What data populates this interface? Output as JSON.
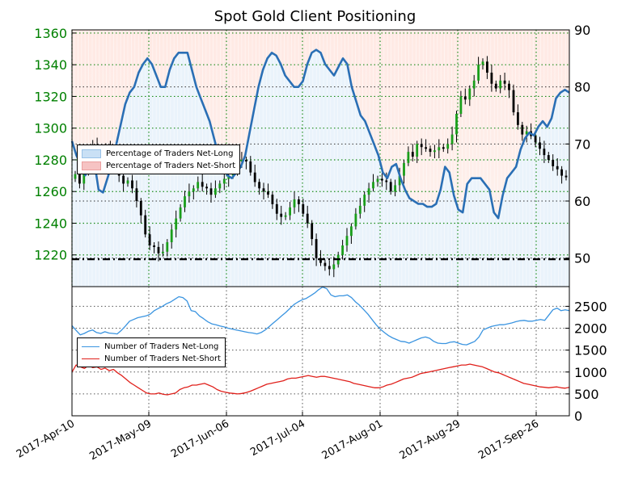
{
  "chart_data": [
    {
      "type": "candlestick+line",
      "title": "Spot Gold Client Positioning",
      "left_axis": {
        "ticks": [
          1220,
          1240,
          1260,
          1280,
          1300,
          1320,
          1340,
          1360
        ],
        "ylim": [
          1200,
          1362
        ],
        "color": "#008000"
      },
      "right_axis": {
        "ticks": [
          50,
          60,
          70,
          80,
          90
        ],
        "ylim": [
          45,
          90
        ]
      },
      "x_ticks": [
        "2017-Apr-10",
        "2017-May-09",
        "2017-Jun-06",
        "2017-Jul-04",
        "2017-Aug-01",
        "2017-Aug-29",
        "2017-Sep-26"
      ],
      "legend": [
        "Percentage of Traders Net-Long",
        "Percentage of Traders Net-Short"
      ],
      "legend_position": "left",
      "reference_line": {
        "value": 49.8,
        "style": "dash-dot"
      },
      "grid": true,
      "price_close": [
        1271,
        1265,
        1275,
        1283,
        1289,
        1286,
        1280,
        1287,
        1284,
        1278,
        1270,
        1265,
        1267,
        1262,
        1254,
        1245,
        1233,
        1226,
        1225,
        1221,
        1222,
        1228,
        1236,
        1243,
        1250,
        1257,
        1260,
        1262,
        1266,
        1263,
        1262,
        1258,
        1262,
        1265,
        1268,
        1270,
        1273,
        1279,
        1280,
        1279,
        1272,
        1266,
        1262,
        1260,
        1258,
        1252,
        1246,
        1244,
        1245,
        1250,
        1255,
        1252,
        1246,
        1240,
        1230,
        1218,
        1215,
        1213,
        1211,
        1214,
        1220,
        1226,
        1232,
        1238,
        1246,
        1251,
        1258,
        1262,
        1266,
        1268,
        1267,
        1266,
        1260,
        1264,
        1270,
        1278,
        1285,
        1282,
        1290,
        1288,
        1287,
        1285,
        1286,
        1288,
        1287,
        1290,
        1296,
        1309,
        1320,
        1318,
        1325,
        1330,
        1340,
        1342,
        1335,
        1328,
        1325,
        1330,
        1328,
        1324,
        1310,
        1302,
        1296,
        1298,
        1295,
        1291,
        1287,
        1283,
        1280,
        1276,
        1274,
        1270,
        1269
      ],
      "series": [
        {
          "name": "Percentage of Traders Net-Long",
          "values": [
            70.5,
            68,
            66.5,
            64.5,
            66,
            67,
            62,
            61.5,
            64,
            66.5,
            70,
            73.5,
            77,
            79,
            80,
            82.5,
            84,
            85,
            84,
            82,
            80,
            80,
            83,
            85,
            86,
            86,
            86,
            83,
            80,
            78,
            76,
            74,
            71,
            68,
            66,
            64.5,
            64,
            65,
            66,
            68,
            72,
            76,
            80,
            83,
            85,
            86,
            85.5,
            84,
            82,
            81,
            80,
            80,
            81,
            84,
            86,
            86.5,
            86,
            84,
            83,
            82,
            83.5,
            85,
            84,
            80,
            77.5,
            75,
            74,
            72,
            70,
            68,
            65,
            64,
            66,
            66.5,
            64,
            62,
            60.5,
            60,
            59.5,
            59.5,
            59,
            59,
            59.5,
            62,
            66,
            65,
            61,
            58.5,
            58,
            63,
            64,
            64,
            64,
            63,
            62,
            58,
            57,
            61,
            64,
            65,
            66,
            69,
            71,
            72,
            71.5,
            73,
            74,
            73,
            74.5,
            78,
            79,
            79.5,
            79
          ]
        }
      ]
    },
    {
      "type": "line",
      "yticks": [
        0,
        500,
        1000,
        1500,
        2000,
        2500
      ],
      "ylim": [
        0,
        2950
      ],
      "legend": [
        "Number of Traders Net-Long",
        "Number of Traders Net-Short"
      ],
      "legend_position": "left",
      "grid": true,
      "series": [
        {
          "name": "Number of Traders Net-Long",
          "color": "#3a94e0",
          "values": [
            2060,
            1950,
            1850,
            1880,
            1930,
            1960,
            1900,
            1880,
            1920,
            1890,
            1880,
            1870,
            1950,
            2050,
            2160,
            2200,
            2240,
            2260,
            2280,
            2320,
            2400,
            2450,
            2500,
            2560,
            2600,
            2660,
            2720,
            2700,
            2620,
            2400,
            2380,
            2280,
            2220,
            2150,
            2100,
            2080,
            2050,
            2030,
            2000,
            1980,
            1960,
            1940,
            1920,
            1900,
            1890,
            1870,
            1900,
            1960,
            2040,
            2120,
            2200,
            2280,
            2360,
            2450,
            2540,
            2600,
            2650,
            2680,
            2740,
            2800,
            2880,
            2940,
            2900,
            2760,
            2720,
            2740,
            2740,
            2760,
            2700,
            2600,
            2520,
            2420,
            2320,
            2200,
            2080,
            1980,
            1900,
            1830,
            1780,
            1740,
            1700,
            1690,
            1660,
            1700,
            1740,
            1780,
            1800,
            1770,
            1700,
            1660,
            1650,
            1650,
            1680,
            1690,
            1660,
            1630,
            1620,
            1660,
            1700,
            1800,
            1960,
            2000,
            2040,
            2060,
            2080,
            2080,
            2100,
            2120,
            2150,
            2170,
            2180,
            2160,
            2160,
            2180,
            2200,
            2180,
            2300,
            2420,
            2460,
            2400,
            2420,
            2400
          ]
        },
        {
          "name": "Number of Traders Net-Short",
          "color": "#e0201b",
          "values": [
            1000,
            1160,
            1120,
            1080,
            1150,
            1100,
            1120,
            1060,
            1090,
            1030,
            1060,
            980,
            920,
            840,
            760,
            700,
            640,
            580,
            520,
            500,
            500,
            520,
            490,
            480,
            500,
            520,
            600,
            640,
            660,
            700,
            700,
            720,
            740,
            700,
            660,
            600,
            560,
            540,
            520,
            510,
            500,
            510,
            530,
            560,
            600,
            640,
            680,
            720,
            740,
            760,
            780,
            800,
            840,
            860,
            860,
            880,
            900,
            920,
            900,
            880,
            900,
            900,
            880,
            860,
            840,
            820,
            800,
            780,
            740,
            720,
            700,
            680,
            660,
            640,
            640,
            660,
            700,
            720,
            760,
            800,
            840,
            860,
            880,
            920,
            960,
            980,
            1000,
            1020,
            1040,
            1060,
            1080,
            1100,
            1120,
            1140,
            1160,
            1160,
            1180,
            1160,
            1140,
            1120,
            1080,
            1040,
            1000,
            980,
            940,
            900,
            860,
            820,
            780,
            740,
            720,
            700,
            680,
            660,
            650,
            640,
            650,
            660,
            640,
            630,
            650
          ]
        }
      ]
    }
  ]
}
